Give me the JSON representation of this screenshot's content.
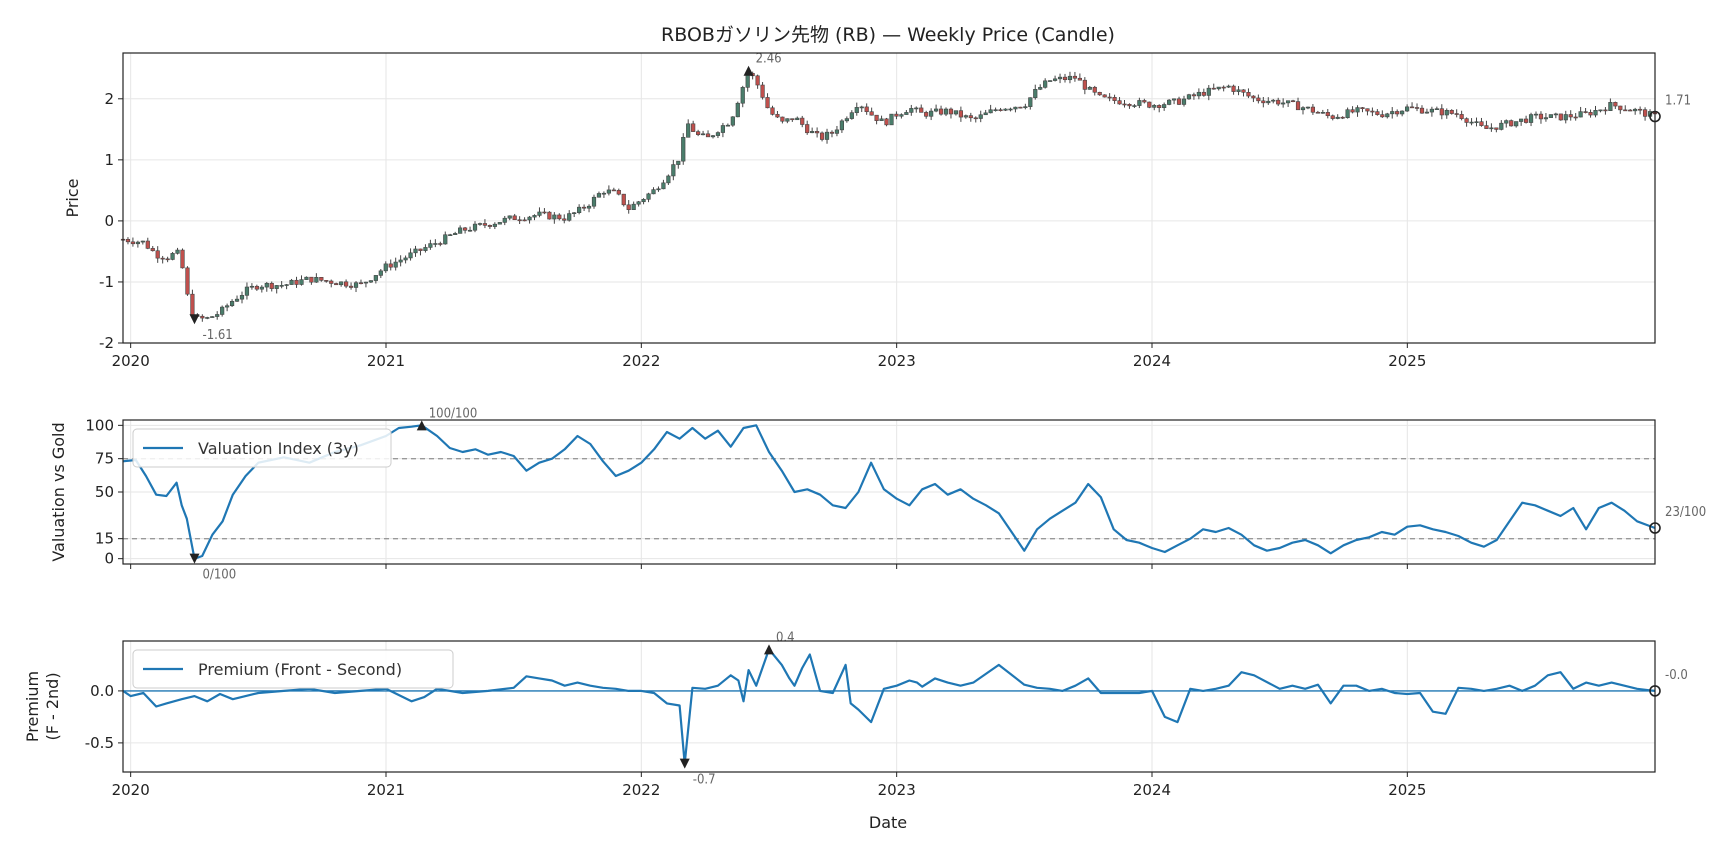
{
  "figure_title": "RBOBガソリン先物 (RB) — Weekly Price (Candle)",
  "x_axis_label": "Date",
  "colors": {
    "up": "#4a7d6b",
    "down": "#c0504d",
    "wick": "#444444",
    "line": "#1f77b4",
    "ref": "#999999",
    "marker": "#222222"
  },
  "chart_data": [
    {
      "id": "price",
      "type": "candlestick",
      "title": "RBOBガソリン先物 (RB) — Weekly Price (Candle)",
      "ylabel": "Price",
      "xlim": [
        2019.97,
        2025.97
      ],
      "ylim": [
        -2.0,
        2.75
      ],
      "yticks": [
        -2,
        -1,
        0,
        1,
        2
      ],
      "ytick_labels": [
        "-2",
        "-1",
        "0",
        "1",
        "2"
      ],
      "xticks": [
        2020,
        2021,
        2022,
        2023,
        2024,
        2025
      ],
      "xtick_labels": [
        "2020",
        "2021",
        "2022",
        "2023",
        "2024",
        "2025"
      ],
      "close_path": [
        [
          2019.97,
          -0.3
        ],
        [
          2020.05,
          -0.35
        ],
        [
          2020.1,
          -0.55
        ],
        [
          2020.15,
          -0.6
        ],
        [
          2020.18,
          -0.5
        ],
        [
          2020.2,
          -0.7
        ],
        [
          2020.22,
          -1.2
        ],
        [
          2020.25,
          -1.61
        ],
        [
          2020.3,
          -1.6
        ],
        [
          2020.35,
          -1.5
        ],
        [
          2020.4,
          -1.3
        ],
        [
          2020.45,
          -1.15
        ],
        [
          2020.5,
          -1.05
        ],
        [
          2020.6,
          -1.05
        ],
        [
          2020.7,
          -0.95
        ],
        [
          2020.8,
          -1.0
        ],
        [
          2020.9,
          -1.05
        ],
        [
          2021.0,
          -0.75
        ],
        [
          2021.1,
          -0.55
        ],
        [
          2021.2,
          -0.35
        ],
        [
          2021.3,
          -0.15
        ],
        [
          2021.4,
          -0.05
        ],
        [
          2021.5,
          0.05
        ],
        [
          2021.6,
          0.1
        ],
        [
          2021.7,
          0.05
        ],
        [
          2021.75,
          0.15
        ],
        [
          2021.8,
          0.3
        ],
        [
          2021.85,
          0.5
        ],
        [
          2021.9,
          0.45
        ],
        [
          2021.95,
          0.2
        ],
        [
          2022.0,
          0.35
        ],
        [
          2022.05,
          0.5
        ],
        [
          2022.1,
          0.75
        ],
        [
          2022.15,
          1.05
        ],
        [
          2022.18,
          1.6
        ],
        [
          2022.22,
          1.4
        ],
        [
          2022.26,
          1.35
        ],
        [
          2022.3,
          1.5
        ],
        [
          2022.35,
          1.65
        ],
        [
          2022.38,
          2.0
        ],
        [
          2022.42,
          2.46
        ],
        [
          2022.46,
          2.2
        ],
        [
          2022.5,
          1.8
        ],
        [
          2022.55,
          1.6
        ],
        [
          2022.6,
          1.7
        ],
        [
          2022.65,
          1.5
        ],
        [
          2022.7,
          1.35
        ],
        [
          2022.75,
          1.45
        ],
        [
          2022.8,
          1.7
        ],
        [
          2022.85,
          1.95
        ],
        [
          2022.9,
          1.75
        ],
        [
          2022.95,
          1.6
        ],
        [
          2023.0,
          1.75
        ],
        [
          2023.05,
          1.85
        ],
        [
          2023.1,
          1.75
        ],
        [
          2023.2,
          1.8
        ],
        [
          2023.3,
          1.65
        ],
        [
          2023.4,
          1.85
        ],
        [
          2023.5,
          1.9
        ],
        [
          2023.55,
          2.15
        ],
        [
          2023.6,
          2.3
        ],
        [
          2023.7,
          2.35
        ],
        [
          2023.75,
          2.15
        ],
        [
          2023.8,
          2.0
        ],
        [
          2023.9,
          1.95
        ],
        [
          2024.0,
          1.9
        ],
        [
          2024.1,
          1.95
        ],
        [
          2024.2,
          2.1
        ],
        [
          2024.3,
          2.2
        ],
        [
          2024.4,
          2.0
        ],
        [
          2024.5,
          1.95
        ],
        [
          2024.6,
          1.85
        ],
        [
          2024.7,
          1.7
        ],
        [
          2024.8,
          1.8
        ],
        [
          2024.9,
          1.75
        ],
        [
          2025.0,
          1.85
        ],
        [
          2025.1,
          1.8
        ],
        [
          2025.2,
          1.75
        ],
        [
          2025.3,
          1.5
        ],
        [
          2025.4,
          1.6
        ],
        [
          2025.5,
          1.7
        ],
        [
          2025.6,
          1.7
        ],
        [
          2025.7,
          1.75
        ],
        [
          2025.8,
          1.9
        ],
        [
          2025.9,
          1.8
        ],
        [
          2025.97,
          1.71
        ]
      ],
      "annotations": [
        {
          "label": "2.46",
          "x": 2022.42,
          "y": 2.46,
          "kind": "max"
        },
        {
          "label": "-1.61",
          "x": 2020.25,
          "y": -1.61,
          "kind": "min"
        },
        {
          "label": "1.71",
          "x": 2025.97,
          "y": 1.71,
          "kind": "last"
        }
      ]
    },
    {
      "id": "valuation",
      "type": "line",
      "ylabel": "Valuation vs Gold",
      "series_name": "Valuation Index (3y)",
      "legend_location": "upper-left",
      "xlim": [
        2019.97,
        2025.97
      ],
      "ylim": [
        -4,
        104
      ],
      "yticks": [
        0,
        15,
        50,
        75,
        100
      ],
      "ytick_labels": [
        "0",
        "15",
        "50",
        "75",
        "100"
      ],
      "hlines": [
        75,
        15
      ],
      "x": [
        2019.97,
        2020.02,
        2020.06,
        2020.1,
        2020.14,
        2020.18,
        2020.2,
        2020.22,
        2020.25,
        2020.28,
        2020.32,
        2020.36,
        2020.4,
        2020.45,
        2020.5,
        2020.55,
        2020.6,
        2020.7,
        2020.8,
        2020.9,
        2021.0,
        2021.05,
        2021.1,
        2021.14,
        2021.2,
        2021.25,
        2021.3,
        2021.35,
        2021.4,
        2021.45,
        2021.5,
        2021.55,
        2021.6,
        2021.65,
        2021.7,
        2021.75,
        2021.8,
        2021.85,
        2021.9,
        2021.95,
        2022.0,
        2022.05,
        2022.1,
        2022.15,
        2022.2,
        2022.25,
        2022.3,
        2022.35,
        2022.4,
        2022.45,
        2022.5,
        2022.55,
        2022.6,
        2022.65,
        2022.7,
        2022.75,
        2022.8,
        2022.85,
        2022.9,
        2022.95,
        2023.0,
        2023.05,
        2023.1,
        2023.15,
        2023.2,
        2023.25,
        2023.3,
        2023.35,
        2023.4,
        2023.45,
        2023.5,
        2023.55,
        2023.6,
        2023.65,
        2023.7,
        2023.75,
        2023.8,
        2023.85,
        2023.9,
        2023.95,
        2024.0,
        2024.05,
        2024.1,
        2024.15,
        2024.2,
        2024.25,
        2024.3,
        2024.35,
        2024.4,
        2024.45,
        2024.5,
        2024.55,
        2024.6,
        2024.65,
        2024.7,
        2024.75,
        2024.8,
        2024.85,
        2024.9,
        2024.95,
        2025.0,
        2025.05,
        2025.1,
        2025.15,
        2025.2,
        2025.25,
        2025.3,
        2025.35,
        2025.4,
        2025.45,
        2025.5,
        2025.55,
        2025.6,
        2025.65,
        2025.7,
        2025.75,
        2025.8,
        2025.85,
        2025.9,
        2025.97
      ],
      "values": [
        73,
        74,
        62,
        48,
        47,
        57,
        40,
        30,
        0,
        2,
        18,
        28,
        48,
        62,
        72,
        74,
        76,
        72,
        80,
        85,
        92,
        98,
        99,
        100,
        92,
        83,
        80,
        82,
        78,
        80,
        77,
        66,
        72,
        75,
        82,
        92,
        86,
        73,
        62,
        66,
        72,
        82,
        95,
        90,
        98,
        90,
        96,
        84,
        98,
        100,
        80,
        66,
        50,
        52,
        48,
        40,
        38,
        50,
        72,
        52,
        45,
        40,
        52,
        56,
        48,
        52,
        45,
        40,
        34,
        20,
        6,
        22,
        30,
        36,
        42,
        56,
        46,
        22,
        14,
        12,
        8,
        5,
        10,
        15,
        22,
        20,
        23,
        18,
        10,
        6,
        8,
        12,
        14,
        10,
        4,
        10,
        14,
        16,
        20,
        18,
        24,
        25,
        22,
        20,
        17,
        12,
        9,
        14,
        28,
        42,
        40,
        36,
        32,
        38,
        22,
        38,
        42,
        36,
        28,
        23
      ],
      "annotations": [
        {
          "label": "100/100",
          "x": 2021.14,
          "y": 100,
          "kind": "max"
        },
        {
          "label": "0/100",
          "x": 2020.25,
          "y": 0,
          "kind": "min"
        },
        {
          "label": "23/100",
          "x": 2025.97,
          "y": 23,
          "kind": "last"
        }
      ]
    },
    {
      "id": "premium",
      "type": "line",
      "ylabel": "Premium",
      "ylabel2": "(F - 2nd)",
      "series_name": "Premium (Front - Second)",
      "legend_location": "upper-left",
      "xlim": [
        2019.97,
        2025.97
      ],
      "ylim": [
        -0.78,
        0.48
      ],
      "yticks": [
        -0.5,
        0.0
      ],
      "ytick_labels": [
        "-0.5",
        "0.0"
      ],
      "hlines": [
        0
      ],
      "x": [
        2019.97,
        2020.0,
        2020.05,
        2020.1,
        2020.14,
        2020.2,
        2020.25,
        2020.3,
        2020.35,
        2020.4,
        2020.5,
        2020.6,
        2020.7,
        2020.8,
        2020.9,
        2021.0,
        2021.1,
        2021.15,
        2021.2,
        2021.3,
        2021.4,
        2021.5,
        2021.55,
        2021.6,
        2021.65,
        2021.7,
        2021.75,
        2021.8,
        2021.85,
        2021.9,
        2021.95,
        2022.0,
        2022.05,
        2022.1,
        2022.15,
        2022.17,
        2022.2,
        2022.25,
        2022.3,
        2022.35,
        2022.38,
        2022.4,
        2022.42,
        2022.45,
        2022.5,
        2022.55,
        2022.58,
        2022.6,
        2022.63,
        2022.66,
        2022.7,
        2022.75,
        2022.8,
        2022.82,
        2022.85,
        2022.9,
        2022.95,
        2023.0,
        2023.05,
        2023.08,
        2023.1,
        2023.15,
        2023.2,
        2023.25,
        2023.3,
        2023.4,
        2023.5,
        2023.55,
        2023.6,
        2023.65,
        2023.7,
        2023.75,
        2023.8,
        2023.9,
        2023.95,
        2024.0,
        2024.05,
        2024.1,
        2024.15,
        2024.2,
        2024.25,
        2024.3,
        2024.35,
        2024.4,
        2024.5,
        2024.55,
        2024.6,
        2024.65,
        2024.7,
        2024.75,
        2024.8,
        2024.85,
        2024.9,
        2024.95,
        2025.0,
        2025.05,
        2025.1,
        2025.15,
        2025.2,
        2025.25,
        2025.3,
        2025.35,
        2025.4,
        2025.45,
        2025.5,
        2025.55,
        2025.6,
        2025.65,
        2025.7,
        2025.75,
        2025.8,
        2025.85,
        2025.9,
        2025.97
      ],
      "values": [
        0.0,
        -0.05,
        -0.02,
        -0.15,
        -0.12,
        -0.08,
        -0.05,
        -0.1,
        -0.03,
        -0.08,
        -0.02,
        0.0,
        0.02,
        -0.02,
        0.0,
        0.02,
        -0.1,
        -0.06,
        0.02,
        -0.02,
        0.0,
        0.03,
        0.14,
        0.12,
        0.1,
        0.05,
        0.08,
        0.05,
        0.03,
        0.02,
        0.0,
        0.0,
        -0.02,
        -0.12,
        -0.14,
        -0.7,
        0.03,
        0.02,
        0.05,
        0.15,
        0.1,
        -0.1,
        0.2,
        0.05,
        0.4,
        0.25,
        0.12,
        0.05,
        0.22,
        0.35,
        0.0,
        -0.02,
        0.25,
        -0.12,
        -0.18,
        -0.3,
        0.02,
        0.05,
        0.1,
        0.08,
        0.04,
        0.12,
        0.08,
        0.05,
        0.08,
        0.25,
        0.06,
        0.03,
        0.02,
        0.0,
        0.05,
        0.12,
        -0.02,
        -0.02,
        -0.02,
        0.0,
        -0.25,
        -0.3,
        0.02,
        0.0,
        0.02,
        0.05,
        0.18,
        0.15,
        0.02,
        0.05,
        0.02,
        0.06,
        -0.12,
        0.05,
        0.05,
        0.0,
        0.02,
        -0.02,
        -0.03,
        -0.02,
        -0.2,
        -0.22,
        0.03,
        0.02,
        0.0,
        0.02,
        0.05,
        0.0,
        0.05,
        0.15,
        0.18,
        0.02,
        0.08,
        0.05,
        0.08,
        0.05,
        0.02,
        -0.0
      ],
      "annotations": [
        {
          "label": "0.4",
          "x": 2022.5,
          "y": 0.4,
          "kind": "max"
        },
        {
          "label": "-0.7",
          "x": 2022.17,
          "y": -0.7,
          "kind": "min"
        },
        {
          "label": "-0.0",
          "x": 2025.97,
          "y": 0.0,
          "kind": "last"
        }
      ]
    }
  ]
}
